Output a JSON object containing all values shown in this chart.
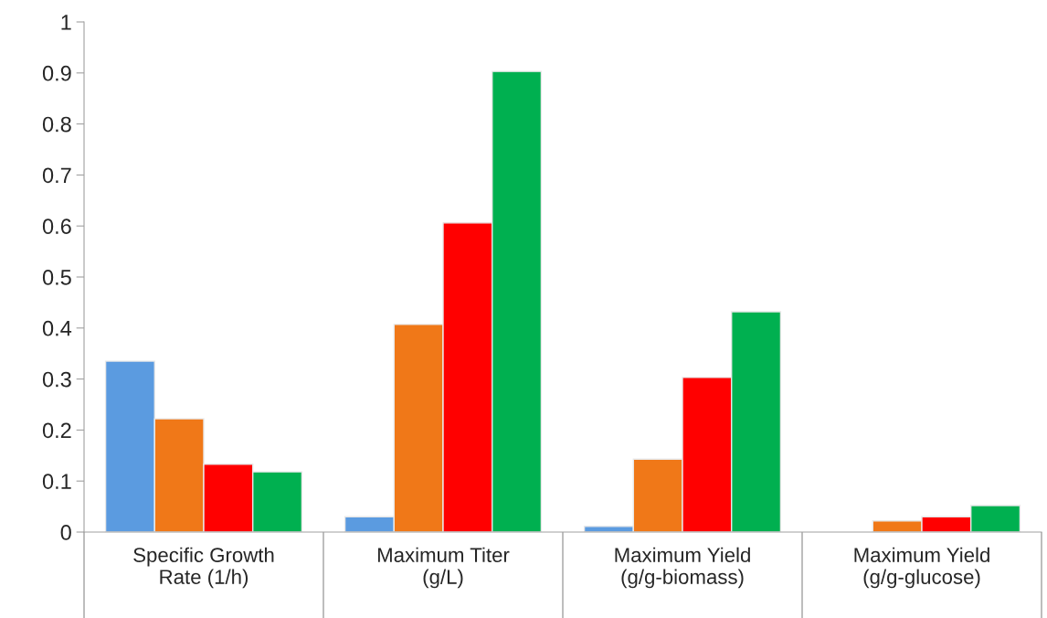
{
  "chart_data": {
    "type": "bar",
    "categories": [
      "Specific Growth\nRate (1/h)",
      "Maximum Titer\n(g/L)",
      "Maximum Yield\n(g/g-biomass)",
      "Maximum Yield\n(g/g-glucose)"
    ],
    "series": [
      {
        "color": "#5b9be0",
        "values": [
          0.335,
          0.03,
          0.011,
          null
        ]
      },
      {
        "color": "#f07818",
        "values": [
          0.222,
          0.407,
          0.143,
          0.022
        ]
      },
      {
        "color": "#ff0000",
        "values": [
          0.133,
          0.606,
          0.303,
          0.03
        ]
      },
      {
        "color": "#00b050",
        "values": [
          0.118,
          0.903,
          0.432,
          0.052
        ]
      }
    ],
    "ylim": [
      0,
      1
    ],
    "yticks": [
      0,
      0.1,
      0.2,
      0.3,
      0.4,
      0.5,
      0.6,
      0.7,
      0.8,
      0.9,
      1
    ],
    "grid": false,
    "legend": false
  }
}
